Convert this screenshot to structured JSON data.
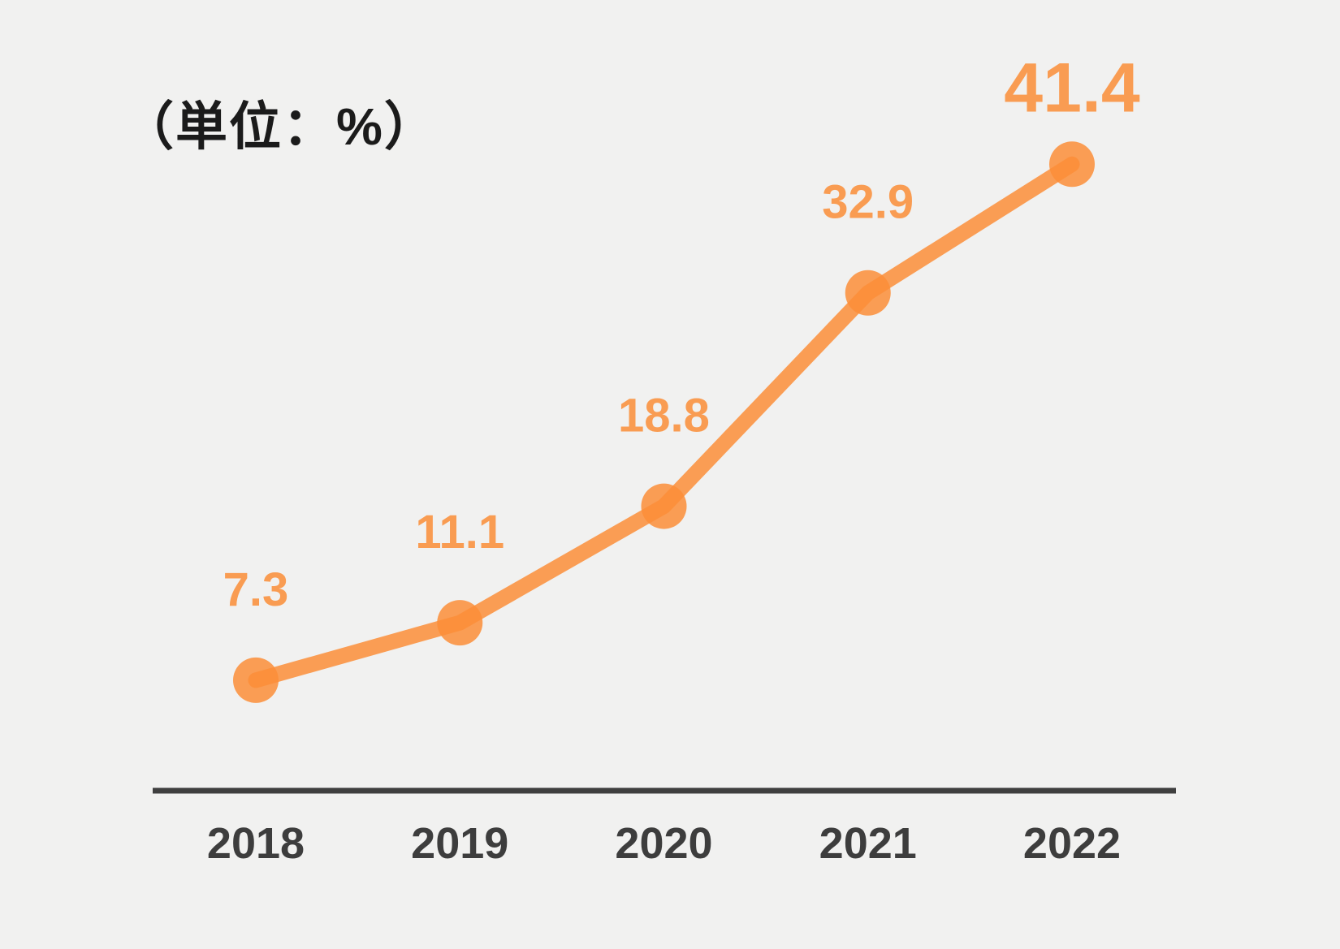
{
  "page": {
    "background_color": "#F1F1F0"
  },
  "unit_note": "（単位：%）",
  "chart_data": {
    "type": "line",
    "title": "",
    "subtitle_note": "（単位：%）",
    "categories": [
      "2018",
      "2019",
      "2020",
      "2021",
      "2022"
    ],
    "series": [
      {
        "name": "rate-percent",
        "values": [
          7.3,
          11.1,
          18.8,
          32.9,
          41.4
        ]
      }
    ],
    "data_labels": [
      "7.3",
      "11.1",
      "18.8",
      "32.9",
      "41.4"
    ],
    "highlight_last_label": true,
    "xlabel": "",
    "ylabel": "%",
    "ylim": [
      0,
      52
    ],
    "grid": false,
    "legend": false,
    "colors": {
      "line": "rgba(252,142,56,0.85)",
      "marker": "rgba(252,142,56,0.85)",
      "value_label": "#F99C52",
      "axis_line": "#3F3F3F",
      "tick_label": "#3D3D3D",
      "note_text": "#1B1B1B",
      "background": "#F1F1F0"
    }
  }
}
